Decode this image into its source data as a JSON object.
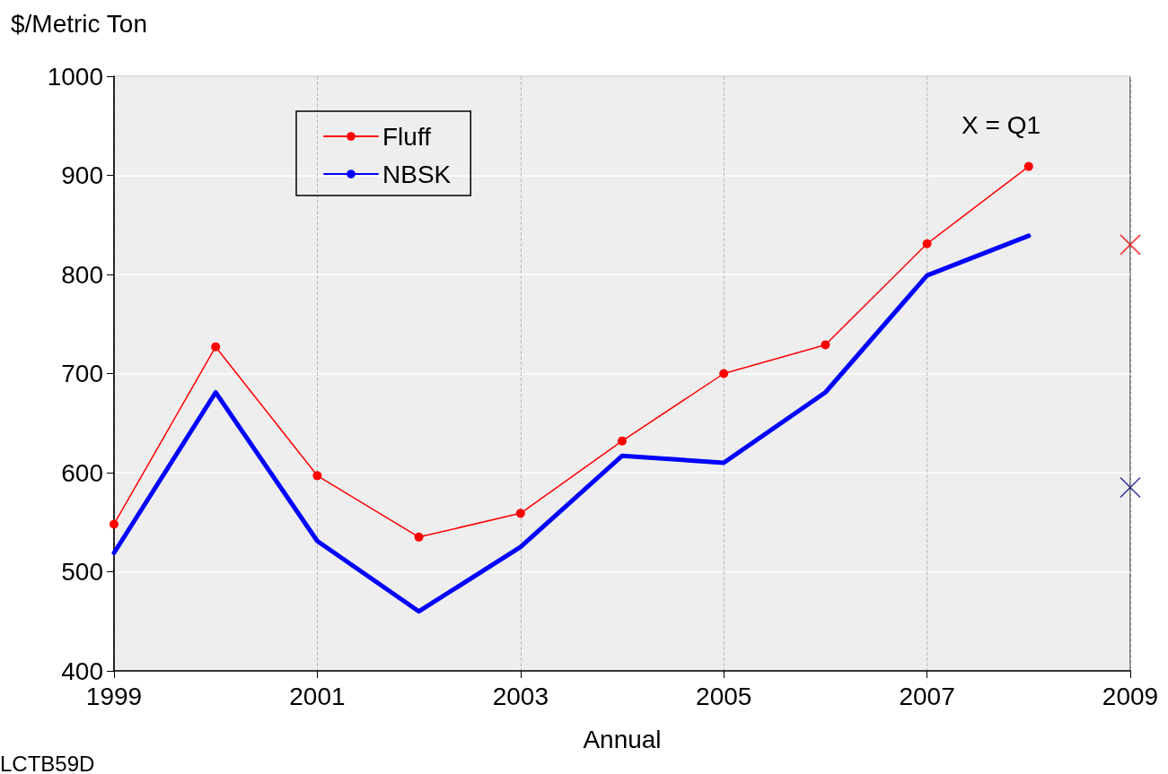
{
  "chart_data": {
    "type": "line",
    "ylabel": "$/Metric Ton",
    "xlabel": "Annual",
    "x": [
      1999,
      2000,
      2001,
      2002,
      2003,
      2004,
      2005,
      2006,
      2007,
      2008
    ],
    "series": [
      {
        "name": "Fluff",
        "color": "#ff0000",
        "marker": "circle",
        "values": [
          548,
          727,
          597,
          535,
          559,
          632,
          700,
          729,
          831,
          909
        ]
      },
      {
        "name": "NBSK",
        "color": "#0000ff",
        "marker": "none",
        "values": [
          519,
          681,
          531,
          460,
          525,
          617,
          610,
          681,
          799,
          839
        ]
      },
      {
        "type": "scatter",
        "color": "#ff0000",
        "marker": "cross",
        "x": [
          2009
        ],
        "values": [
          830
        ]
      },
      {
        "type": "scatter",
        "color": "#000080",
        "marker": "cross",
        "x": [
          2009
        ],
        "values": [
          585
        ]
      }
    ],
    "xlim": [
      1999,
      2009
    ],
    "xticks": [
      1999,
      2001,
      2003,
      2005,
      2007,
      2009
    ],
    "ylim": [
      400,
      1000
    ],
    "yticks": [
      400,
      500,
      600,
      700,
      800,
      900,
      1000
    ],
    "grid": true,
    "legend": "top left",
    "annotations": [
      "X = Q1",
      "LCTB59D"
    ]
  }
}
